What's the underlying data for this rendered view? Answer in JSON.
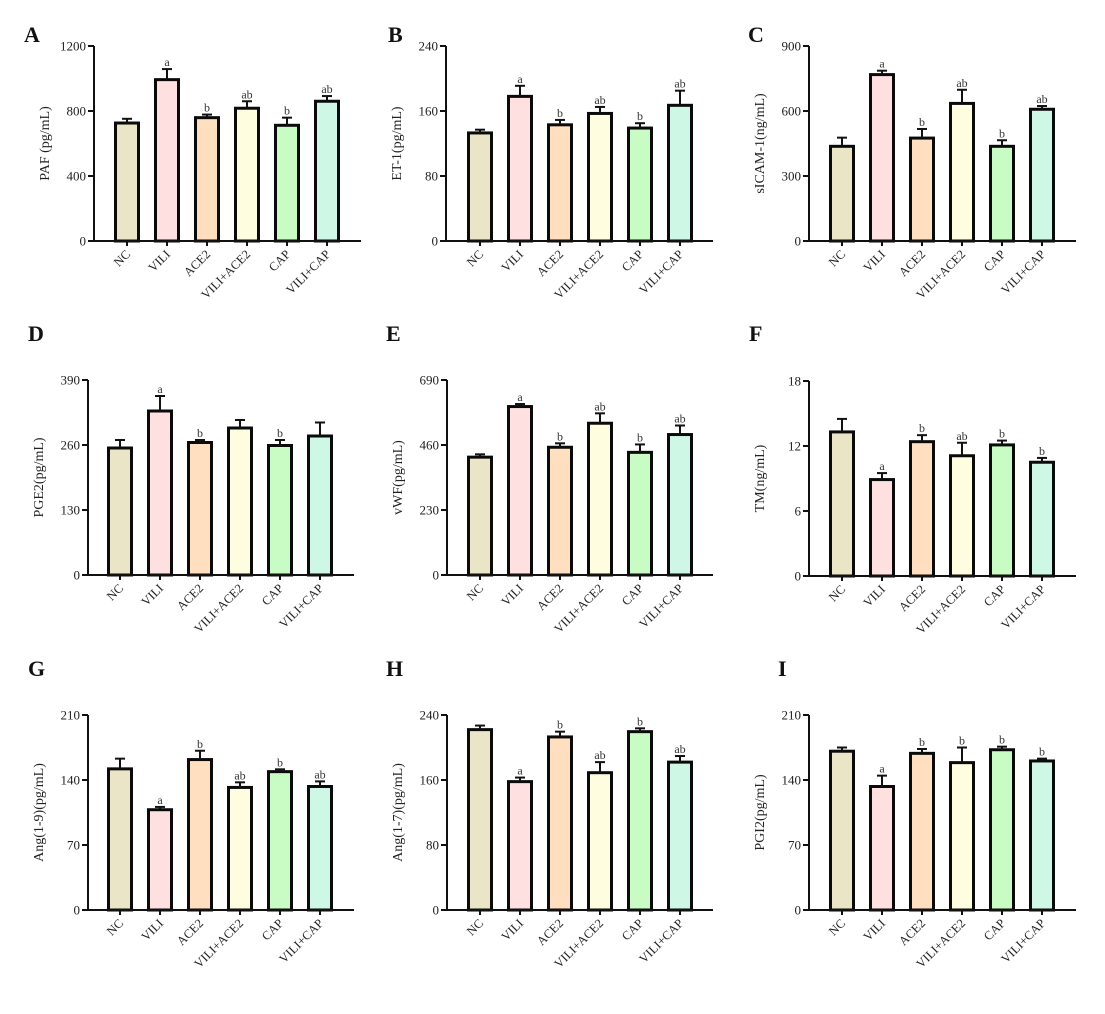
{
  "figure": {
    "categories": [
      "NC",
      "VILI",
      "ACE2",
      "VILI+ACE2",
      "CAP",
      "VILI+CAP"
    ],
    "bar_colors": [
      "#EBE5C8",
      "#FFE0E1",
      "#FFDFBF",
      "#FFFDE0",
      "#C9FCC4",
      "#CEF7E6"
    ]
  },
  "chart_data": [
    {
      "panel": "A",
      "type": "bar",
      "title": "",
      "xlabel": "",
      "ylabel": "PAF (pg/mL)",
      "categories": [
        "NC",
        "VILI",
        "ACE2",
        "VILI+ACE2",
        "CAP",
        "VILI+CAP"
      ],
      "values": [
        726,
        993,
        759,
        817,
        712,
        860
      ],
      "error_upper": [
        752,
        1058,
        778,
        860,
        759,
        892
      ],
      "significance": [
        "",
        "a",
        "b",
        "ab",
        "b",
        "ab"
      ],
      "ylim": [
        0,
        1200
      ],
      "yticks": [
        0,
        400,
        800,
        1200
      ],
      "grid": false
    },
    {
      "panel": "B",
      "type": "bar",
      "title": "",
      "xlabel": "",
      "ylabel": "ET-1(pg/mL)",
      "categories": [
        "NC",
        "VILI",
        "ACE2",
        "VILI+ACE2",
        "CAP",
        "VILI+CAP"
      ],
      "values": [
        133,
        178,
        143,
        157,
        139,
        167
      ],
      "error_upper": [
        137,
        191,
        149,
        165,
        145,
        185
      ],
      "significance": [
        "",
        "a",
        "b",
        "ab",
        "b",
        "ab"
      ],
      "ylim": [
        0,
        240
      ],
      "yticks": [
        0,
        80,
        160,
        240
      ],
      "grid": false
    },
    {
      "panel": "C",
      "type": "bar",
      "title": "",
      "xlabel": "",
      "ylabel": "sICAM-1(ng/mL)",
      "categories": [
        "NC",
        "VILI",
        "ACE2",
        "VILI+ACE2",
        "CAP",
        "VILI+CAP"
      ],
      "values": [
        437,
        768,
        475,
        635,
        437,
        608
      ],
      "error_upper": [
        477,
        786,
        517,
        698,
        465,
        623
      ],
      "significance": [
        "",
        "a",
        "b",
        "ab",
        "b",
        "ab"
      ],
      "ylim": [
        0,
        900
      ],
      "yticks": [
        0,
        300,
        600,
        900
      ],
      "grid": false
    },
    {
      "panel": "D",
      "type": "bar",
      "title": "",
      "xlabel": "",
      "ylabel": "PGE2(pg/mL)",
      "categories": [
        "NC",
        "VILI",
        "ACE2",
        "VILI+ACE2",
        "CAP",
        "VILI+CAP"
      ],
      "values": [
        254,
        328,
        265,
        294,
        259,
        278
      ],
      "error_upper": [
        270,
        358,
        270,
        310,
        270,
        305
      ],
      "significance": [
        "",
        "a",
        "b",
        "",
        "b",
        ""
      ],
      "ylim": [
        0,
        390
      ],
      "yticks": [
        0,
        130,
        260,
        390
      ],
      "grid": false
    },
    {
      "panel": "E",
      "type": "bar",
      "title": "",
      "xlabel": "",
      "ylabel": "vWF(pg/mL)",
      "categories": [
        "NC",
        "VILI",
        "ACE2",
        "VILI+ACE2",
        "CAP",
        "VILI+CAP"
      ],
      "values": [
        417,
        596,
        452,
        537,
        434,
        497
      ],
      "error_upper": [
        427,
        605,
        466,
        572,
        462,
        529
      ],
      "significance": [
        "",
        "a",
        "b",
        "ab",
        "b",
        "ab"
      ],
      "ylim": [
        0,
        690
      ],
      "yticks": [
        0,
        230,
        460,
        690
      ],
      "grid": false
    },
    {
      "panel": "F",
      "type": "bar",
      "title": "",
      "xlabel": "",
      "ylabel": "TM(ng/mL)",
      "categories": [
        "NC",
        "VILI",
        "ACE2",
        "VILI+ACE2",
        "CAP",
        "VILI+CAP"
      ],
      "values": [
        13.3,
        8.9,
        12.4,
        11.1,
        12.1,
        10.5
      ],
      "error_upper": [
        14.5,
        9.5,
        13.0,
        12.3,
        12.5,
        10.9
      ],
      "significance": [
        "",
        "a",
        "b",
        "ab",
        "b",
        "b"
      ],
      "ylim": [
        0,
        18
      ],
      "yticks": [
        0,
        6,
        12,
        18
      ],
      "grid": false
    },
    {
      "panel": "G",
      "type": "bar",
      "title": "",
      "xlabel": "",
      "ylabel": "Ang(1-9)(pg/mL)",
      "categories": [
        "NC",
        "VILI",
        "ACE2",
        "VILI+ACE2",
        "CAP",
        "VILI+CAP"
      ],
      "values": [
        152,
        108,
        162,
        132,
        149,
        133
      ],
      "error_upper": [
        163,
        111,
        171.5,
        137.5,
        151.5,
        138.5
      ],
      "significance": [
        "",
        "a",
        "b",
        "ab",
        "b",
        "ab"
      ],
      "ylim": [
        0,
        210
      ],
      "yticks": [
        0,
        70,
        140,
        210
      ],
      "grid": false
    },
    {
      "panel": "H",
      "type": "bar",
      "title": "",
      "xlabel": "",
      "ylabel": "Ang(1-7)(pg/mL)",
      "categories": [
        "NC",
        "VILI",
        "ACE2",
        "VILI+ACE2",
        "CAP",
        "VILI+CAP"
      ],
      "values": [
        222,
        158,
        213,
        169,
        219.5,
        182
      ],
      "error_upper": [
        227,
        163,
        219.5,
        182,
        223.6,
        189.5
      ],
      "significance": [
        "",
        "a",
        "b",
        "ab",
        "b",
        "ab"
      ],
      "ylim": [
        0,
        240
      ],
      "yticks": [
        0,
        80,
        160,
        240
      ],
      "grid": false
    },
    {
      "panel": "I",
      "type": "bar",
      "title": "",
      "xlabel": "",
      "ylabel": "PGI2(pg/mL)",
      "categories": [
        "NC",
        "VILI",
        "ACE2",
        "VILI+ACE2",
        "CAP",
        "VILI+CAP"
      ],
      "values": [
        171,
        133,
        168.7,
        158.7,
        172.6,
        160.5
      ],
      "error_upper": [
        175,
        144.7,
        173.4,
        175,
        175.9,
        163
      ],
      "significance": [
        "",
        "a",
        "b",
        "b",
        "b",
        "b"
      ],
      "ylim": [
        0,
        210
      ],
      "yticks": [
        0,
        70,
        140,
        210
      ],
      "grid": false
    }
  ]
}
